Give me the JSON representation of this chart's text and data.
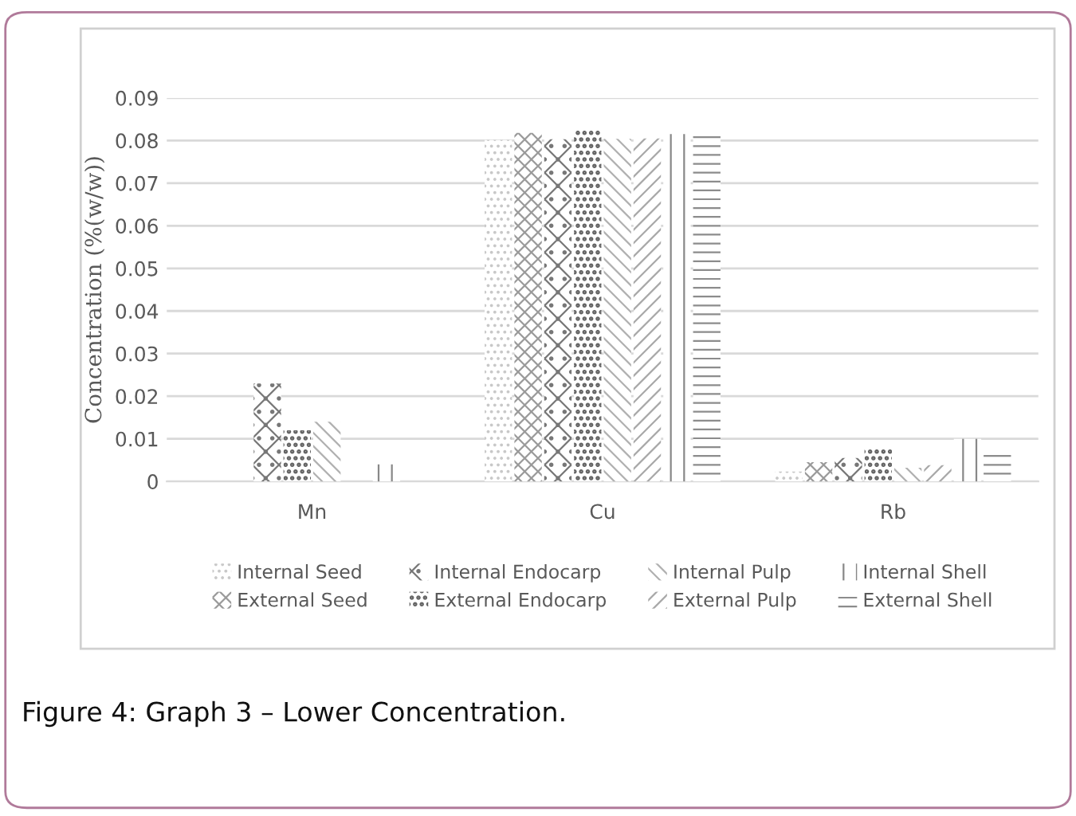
{
  "chart_data": {
    "type": "bar",
    "ylabel": "Concentration (%(w/w))",
    "categories": [
      "Mn",
      "Cu",
      "Rb"
    ],
    "series": [
      {
        "name": "Internal Seed",
        "color": "#c8c8c8",
        "values": [
          0,
          0.0801,
          0.0023
        ]
      },
      {
        "name": "External Seed",
        "color": "#9a9a9a",
        "values": [
          0,
          0.0818,
          0.0045
        ]
      },
      {
        "name": "Internal Endocarp",
        "color": "#777777",
        "values": [
          0.023,
          0.0803,
          0.0055
        ]
      },
      {
        "name": "External Endocarp",
        "color": "#666666",
        "values": [
          0.012,
          0.0826,
          0.0075
        ]
      },
      {
        "name": "Internal Pulp",
        "color": "#b0b0b0",
        "values": [
          0.014,
          0.0804,
          0.0032
        ]
      },
      {
        "name": "External Pulp",
        "color": "#a8a8a8",
        "values": [
          0,
          0.0805,
          0.0038
        ]
      },
      {
        "name": "Internal Shell",
        "color": "#888888",
        "values": [
          0.004,
          0.0815,
          0.01
        ]
      },
      {
        "name": "External Shell",
        "color": "#8c8c8c",
        "values": [
          0,
          0.0815,
          0.0075
        ]
      }
    ],
    "ylim": [
      0,
      0.09
    ],
    "yticks": [
      0,
      0.01,
      0.02,
      0.03,
      0.04,
      0.05,
      0.06,
      0.07,
      0.08,
      0.09
    ],
    "grid": "y",
    "legend": "bottom",
    "annotations": [
      "Figure 4: Graph 3 – Lower Concentration."
    ]
  }
}
